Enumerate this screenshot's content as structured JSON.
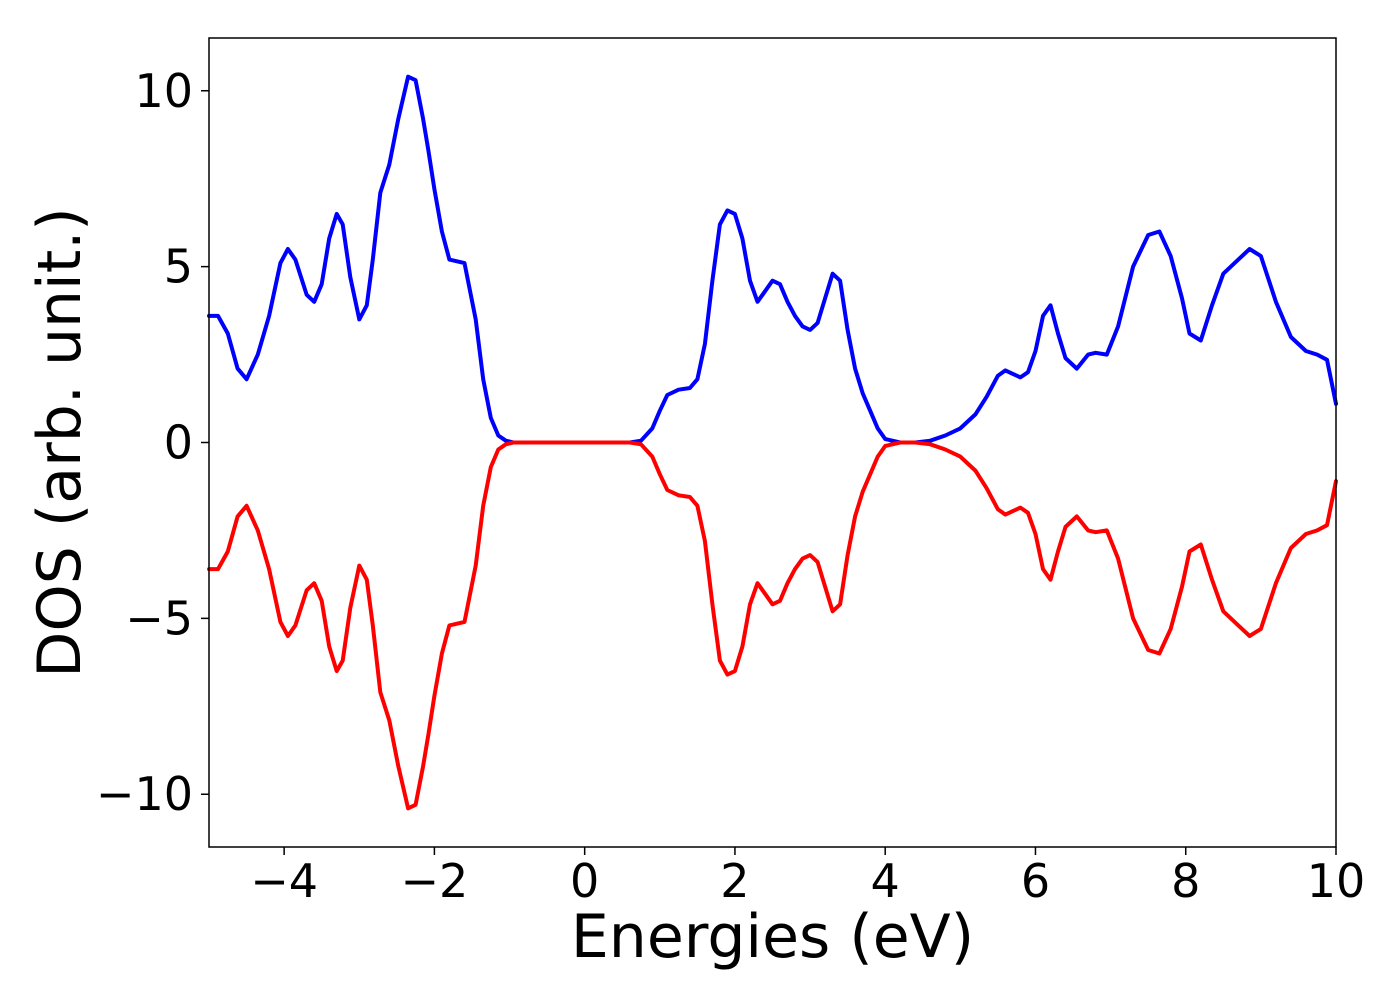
{
  "chart_data": {
    "type": "line",
    "xlabel": "Energies (eV)",
    "ylabel": "DOS (arb. unit.)",
    "xlim": [
      -5,
      10
    ],
    "ylim": [
      -11.5,
      11.5
    ],
    "x_ticks": [
      -4,
      -2,
      0,
      2,
      4,
      6,
      8,
      10
    ],
    "x_tick_labels": [
      "−4",
      "−2",
      "0",
      "2",
      "4",
      "6",
      "8",
      "10"
    ],
    "y_ticks": [
      -10,
      -5,
      0,
      5,
      10
    ],
    "y_tick_labels": [
      "−10",
      "−5",
      "0",
      "5",
      "10"
    ],
    "grid": false,
    "series": [
      {
        "color": "#0000ff",
        "x": [
          -5.0,
          -4.88,
          -4.75,
          -4.62,
          -4.5,
          -4.35,
          -4.2,
          -4.05,
          -3.95,
          -3.85,
          -3.7,
          -3.6,
          -3.5,
          -3.4,
          -3.3,
          -3.22,
          -3.12,
          -3.0,
          -2.9,
          -2.82,
          -2.72,
          -2.6,
          -2.48,
          -2.35,
          -2.25,
          -2.15,
          -2.08,
          -2.0,
          -1.9,
          -1.8,
          -1.6,
          -1.45,
          -1.35,
          -1.25,
          -1.15,
          -1.05,
          -0.95,
          -0.85,
          -0.75,
          -0.65,
          -0.55,
          -0.4,
          0.0,
          0.4,
          0.6,
          0.75,
          0.9,
          1.0,
          1.1,
          1.25,
          1.4,
          1.5,
          1.6,
          1.7,
          1.8,
          1.9,
          2.0,
          2.1,
          2.2,
          2.3,
          2.4,
          2.5,
          2.6,
          2.7,
          2.8,
          2.9,
          3.0,
          3.1,
          3.2,
          3.3,
          3.4,
          3.5,
          3.6,
          3.7,
          3.8,
          3.9,
          4.0,
          4.2,
          4.4,
          4.6,
          4.8,
          5.0,
          5.2,
          5.35,
          5.5,
          5.6,
          5.7,
          5.8,
          5.9,
          6.0,
          6.1,
          6.2,
          6.3,
          6.4,
          6.55,
          6.7,
          6.8,
          6.95,
          7.1,
          7.3,
          7.5,
          7.65,
          7.8,
          7.95,
          8.05,
          8.2,
          8.35,
          8.5,
          8.7,
          8.85,
          9.0,
          9.2,
          9.4,
          9.6,
          9.75,
          9.88,
          10.0
        ],
        "y": [
          3.6,
          3.6,
          3.1,
          2.1,
          1.8,
          2.5,
          3.6,
          5.1,
          5.5,
          5.2,
          4.2,
          4.0,
          4.5,
          5.8,
          6.5,
          6.2,
          4.7,
          3.5,
          3.9,
          5.2,
          7.1,
          7.9,
          9.2,
          10.4,
          10.3,
          9.2,
          8.3,
          7.2,
          6.0,
          5.2,
          5.1,
          3.5,
          1.8,
          0.7,
          0.2,
          0.05,
          0.0,
          0.0,
          0.0,
          0.0,
          0.0,
          0.0,
          0.0,
          0.0,
          0.0,
          0.05,
          0.4,
          0.9,
          1.35,
          1.5,
          1.55,
          1.8,
          2.8,
          4.6,
          6.2,
          6.6,
          6.5,
          5.8,
          4.6,
          4.0,
          4.3,
          4.6,
          4.5,
          4.0,
          3.6,
          3.3,
          3.2,
          3.4,
          4.1,
          4.8,
          4.6,
          3.2,
          2.1,
          1.4,
          0.9,
          0.4,
          0.1,
          0.0,
          0.0,
          0.05,
          0.2,
          0.4,
          0.8,
          1.3,
          1.9,
          2.05,
          1.95,
          1.85,
          2.0,
          2.6,
          3.6,
          3.9,
          3.1,
          2.4,
          2.1,
          2.5,
          2.55,
          2.5,
          3.3,
          5.0,
          5.9,
          6.0,
          5.3,
          4.1,
          3.1,
          2.9,
          3.9,
          4.8,
          5.2,
          5.5,
          5.3,
          4.0,
          3.0,
          2.6,
          2.5,
          2.35,
          1.1
        ]
      },
      {
        "color": "#ff0000",
        "x": [
          -5.0,
          -4.88,
          -4.75,
          -4.62,
          -4.5,
          -4.35,
          -4.2,
          -4.05,
          -3.95,
          -3.85,
          -3.7,
          -3.6,
          -3.5,
          -3.4,
          -3.3,
          -3.22,
          -3.12,
          -3.0,
          -2.9,
          -2.82,
          -2.72,
          -2.6,
          -2.48,
          -2.35,
          -2.25,
          -2.15,
          -2.08,
          -2.0,
          -1.9,
          -1.8,
          -1.6,
          -1.45,
          -1.35,
          -1.25,
          -1.15,
          -1.05,
          -0.95,
          -0.85,
          -0.75,
          -0.65,
          -0.55,
          -0.4,
          0.0,
          0.4,
          0.6,
          0.75,
          0.9,
          1.0,
          1.1,
          1.25,
          1.4,
          1.5,
          1.6,
          1.7,
          1.8,
          1.9,
          2.0,
          2.1,
          2.2,
          2.3,
          2.4,
          2.5,
          2.6,
          2.7,
          2.8,
          2.9,
          3.0,
          3.1,
          3.2,
          3.3,
          3.4,
          3.5,
          3.6,
          3.7,
          3.8,
          3.9,
          4.0,
          4.2,
          4.4,
          4.6,
          4.8,
          5.0,
          5.2,
          5.35,
          5.5,
          5.6,
          5.7,
          5.8,
          5.9,
          6.0,
          6.1,
          6.2,
          6.3,
          6.4,
          6.55,
          6.7,
          6.8,
          6.95,
          7.1,
          7.3,
          7.5,
          7.65,
          7.8,
          7.95,
          8.05,
          8.2,
          8.35,
          8.5,
          8.7,
          8.85,
          9.0,
          9.2,
          9.4,
          9.6,
          9.75,
          9.88,
          10.0
        ],
        "y": [
          -3.6,
          -3.6,
          -3.1,
          -2.1,
          -1.8,
          -2.5,
          -3.6,
          -5.1,
          -5.5,
          -5.2,
          -4.2,
          -4.0,
          -4.5,
          -5.8,
          -6.5,
          -6.2,
          -4.7,
          -3.5,
          -3.9,
          -5.2,
          -7.1,
          -7.9,
          -9.2,
          -10.4,
          -10.3,
          -9.2,
          -8.3,
          -7.2,
          -6.0,
          -5.2,
          -5.1,
          -3.5,
          -1.8,
          -0.7,
          -0.2,
          -0.05,
          0.0,
          0.0,
          0.0,
          0.0,
          0.0,
          0.0,
          0.0,
          0.0,
          0.0,
          -0.05,
          -0.4,
          -0.9,
          -1.35,
          -1.5,
          -1.55,
          -1.8,
          -2.8,
          -4.6,
          -6.2,
          -6.6,
          -6.5,
          -5.8,
          -4.6,
          -4.0,
          -4.3,
          -4.6,
          -4.5,
          -4.0,
          -3.6,
          -3.3,
          -3.2,
          -3.4,
          -4.1,
          -4.8,
          -4.6,
          -3.2,
          -2.1,
          -1.4,
          -0.9,
          -0.4,
          -0.1,
          0.0,
          0.0,
          -0.05,
          -0.2,
          -0.4,
          -0.8,
          -1.3,
          -1.9,
          -2.05,
          -1.95,
          -1.85,
          -2.0,
          -2.6,
          -3.6,
          -3.9,
          -3.1,
          -2.4,
          -2.1,
          -2.5,
          -2.55,
          -2.5,
          -3.3,
          -5.0,
          -5.9,
          -6.0,
          -5.3,
          -4.1,
          -3.1,
          -2.9,
          -3.9,
          -4.8,
          -5.2,
          -5.5,
          -5.3,
          -4.0,
          -3.0,
          -2.6,
          -2.5,
          -2.35,
          -1.1
        ]
      }
    ]
  }
}
